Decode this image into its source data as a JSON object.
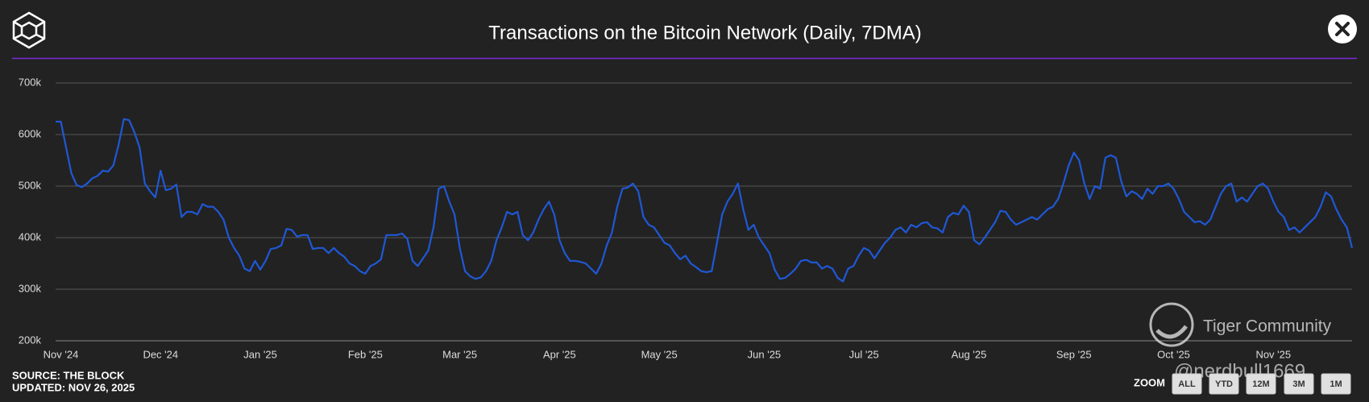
{
  "chart_data": {
    "type": "line",
    "title": "Transactions on the Bitcoin Network (Daily, 7DMA)",
    "color": "#1f58d6",
    "grid": true,
    "ylim": [
      200000,
      700000
    ],
    "yticks": [
      {
        "value": 200000,
        "label": "200k"
      },
      {
        "value": 300000,
        "label": "300k"
      },
      {
        "value": 400000,
        "label": "400k"
      },
      {
        "value": 500000,
        "label": "500k"
      },
      {
        "value": 600000,
        "label": "600k"
      },
      {
        "value": 700000,
        "label": "700k"
      }
    ],
    "categories": [
      null,
      "Nov '24",
      null,
      null,
      null,
      null,
      null,
      null,
      null,
      null,
      null,
      null,
      null,
      null,
      null,
      null,
      null,
      null,
      null,
      null,
      "Dec '24",
      null,
      null,
      null,
      null,
      null,
      null,
      null,
      null,
      null,
      null,
      null,
      null,
      null,
      null,
      null,
      null,
      null,
      null,
      "Jan '25",
      null,
      null,
      null,
      null,
      null,
      null,
      null,
      null,
      null,
      null,
      null,
      null,
      null,
      null,
      null,
      null,
      null,
      null,
      null,
      "Feb '25",
      null,
      null,
      null,
      null,
      null,
      null,
      null,
      null,
      null,
      null,
      null,
      null,
      null,
      null,
      null,
      null,
      null,
      "Mar '25",
      null,
      null,
      null,
      null,
      null,
      null,
      null,
      null,
      null,
      null,
      null,
      null,
      null,
      null,
      null,
      null,
      null,
      null,
      "Apr '25",
      null,
      null,
      null,
      null,
      null,
      null,
      null,
      null,
      null,
      null,
      null,
      null,
      null,
      null,
      null,
      null,
      null,
      null,
      "May '25",
      null,
      null,
      null,
      null,
      null,
      null,
      null,
      null,
      null,
      null,
      null,
      null,
      null,
      null,
      null,
      null,
      null,
      null,
      null,
      "Jun '25",
      null,
      null,
      null,
      null,
      null,
      null,
      null,
      null,
      null,
      null,
      null,
      null,
      null,
      null,
      null,
      null,
      null,
      null,
      "Jul '25",
      null,
      null,
      null,
      null,
      null,
      null,
      null,
      null,
      null,
      null,
      null,
      null,
      null,
      null,
      null,
      null,
      null,
      null,
      null,
      "Aug '25",
      null,
      null,
      null,
      null,
      null,
      null,
      null,
      null,
      null,
      null,
      null,
      null,
      null,
      null,
      null,
      null,
      null,
      null,
      null,
      "Sep '25",
      null,
      null,
      null,
      null,
      null,
      null,
      null,
      null,
      null,
      null,
      null,
      null,
      null,
      null,
      null,
      null,
      null,
      null,
      "Oct '25",
      null,
      null,
      null,
      null,
      null,
      null,
      null,
      null,
      null,
      null,
      null,
      null,
      null,
      null,
      null,
      null,
      null,
      null,
      "Nov '25",
      null,
      null,
      null,
      null,
      null,
      null,
      null,
      null,
      null,
      null,
      null,
      null,
      null,
      null,
      null
    ],
    "values": [
      625000,
      625000,
      575000,
      525000,
      502000,
      498000,
      505000,
      515000,
      520000,
      530000,
      528000,
      540000,
      580000,
      630000,
      628000,
      605000,
      575000,
      505000,
      490000,
      478000,
      530000,
      492000,
      495000,
      503000,
      440000,
      450000,
      450000,
      445000,
      465000,
      460000,
      460000,
      450000,
      435000,
      400000,
      380000,
      365000,
      340000,
      335000,
      355000,
      338000,
      355000,
      378000,
      380000,
      385000,
      417000,
      415000,
      402000,
      405000,
      405000,
      378000,
      380000,
      380000,
      370000,
      380000,
      370000,
      363000,
      350000,
      345000,
      335000,
      330000,
      345000,
      350000,
      358000,
      405000,
      405000,
      405000,
      408000,
      398000,
      355000,
      345000,
      360000,
      375000,
      420000,
      495000,
      500000,
      470000,
      445000,
      380000,
      335000,
      325000,
      320000,
      323000,
      335000,
      355000,
      395000,
      420000,
      450000,
      445000,
      450000,
      405000,
      395000,
      410000,
      435000,
      455000,
      470000,
      445000,
      395000,
      370000,
      355000,
      355000,
      353000,
      350000,
      340000,
      330000,
      350000,
      385000,
      410000,
      460000,
      495000,
      497000,
      505000,
      490000,
      440000,
      425000,
      420000,
      405000,
      390000,
      385000,
      370000,
      358000,
      365000,
      350000,
      343000,
      335000,
      333000,
      335000,
      390000,
      445000,
      470000,
      485000,
      505000,
      455000,
      415000,
      425000,
      400000,
      385000,
      370000,
      338000,
      320000,
      322000,
      330000,
      340000,
      355000,
      357000,
      352000,
      352000,
      340000,
      345000,
      340000,
      322000,
      315000,
      340000,
      345000,
      365000,
      380000,
      375000,
      360000,
      375000,
      390000,
      400000,
      415000,
      420000,
      410000,
      425000,
      420000,
      428000,
      430000,
      420000,
      418000,
      410000,
      440000,
      448000,
      445000,
      462000,
      450000,
      395000,
      387000,
      400000,
      415000,
      430000,
      452000,
      450000,
      435000,
      425000,
      430000,
      435000,
      440000,
      435000,
      445000,
      455000,
      460000,
      475000,
      505000,
      540000,
      565000,
      550000,
      505000,
      475000,
      500000,
      495000,
      555000,
      560000,
      555000,
      510000,
      480000,
      490000,
      485000,
      475000,
      495000,
      485000,
      500000,
      500000,
      505000,
      495000,
      475000,
      450000,
      440000,
      430000,
      432000,
      425000,
      435000,
      460000,
      485000,
      500000,
      505000,
      470000,
      478000,
      470000,
      485000,
      500000,
      505000,
      495000,
      470000,
      450000,
      440000,
      415000,
      420000,
      410000,
      420000,
      430000,
      440000,
      460000,
      488000,
      480000,
      455000,
      435000,
      420000,
      380000
    ]
  },
  "source": "SOURCE: THE BLOCK",
  "updated": "UPDATED: NOV 26, 2025",
  "zoom": {
    "label": "ZOOM",
    "buttons": [
      "ALL",
      "YTD",
      "12M",
      "3M",
      "1M"
    ]
  },
  "watermark": {
    "text": "Tiger Community",
    "handle": "@nerdbull1669"
  }
}
